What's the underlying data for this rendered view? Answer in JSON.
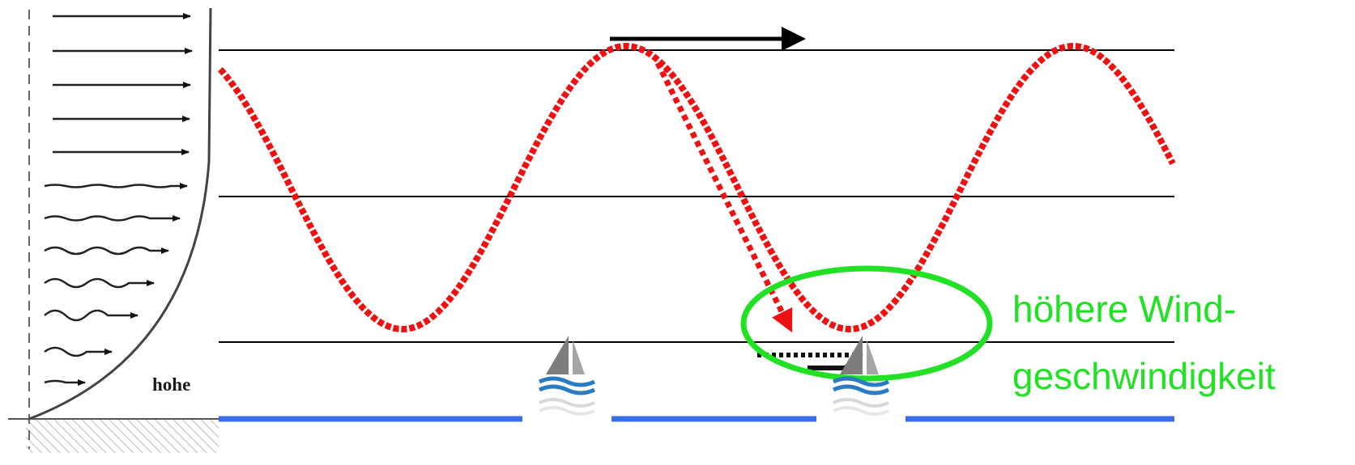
{
  "profile_panel": {
    "label": "hohe"
  },
  "annotation": {
    "line1": "höhere Wind-",
    "line2": "geschwindigkeit"
  },
  "colors": {
    "wave": "#ee1111",
    "highlight": "#22e024",
    "water": "#3a6ee8",
    "levels": "#000000"
  },
  "icons": [
    "sailboat-icon",
    "sailboat-icon"
  ]
}
